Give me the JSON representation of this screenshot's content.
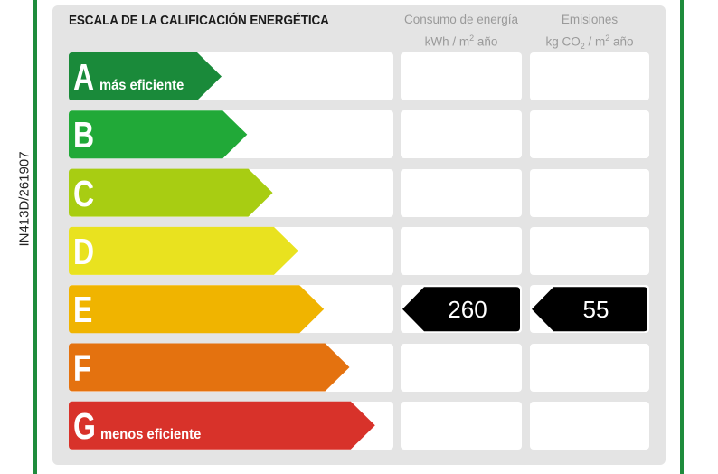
{
  "side_code": "IN413D/261907",
  "header": {
    "title": "ESCALA DE LA CALIFICACIÓN ENERGÉTICA",
    "energy_line1": "Consumo de energía",
    "energy_unit_pre": "kWh / m",
    "energy_unit_sup": "2",
    "energy_unit_post": " año",
    "emissions_line1": "Emisiones",
    "emissions_unit_pre": "kg CO",
    "emissions_unit_sub": "2",
    "emissions_unit_mid": " / m",
    "emissions_unit_sup": "2",
    "emissions_unit_post": " año"
  },
  "ratings": [
    {
      "letter": "A",
      "label": "más eficiente",
      "color": "#1a8a3a"
    },
    {
      "letter": "B",
      "label": "",
      "color": "#21a938"
    },
    {
      "letter": "C",
      "label": "",
      "color": "#a8cd12"
    },
    {
      "letter": "D",
      "label": "",
      "color": "#e9e21f"
    },
    {
      "letter": "E",
      "label": "",
      "color": "#f0b400"
    },
    {
      "letter": "F",
      "label": "",
      "color": "#e4720f"
    },
    {
      "letter": "G",
      "label": "menos eficiente",
      "color": "#d8322a"
    }
  ],
  "result": {
    "rating": "E",
    "energy_value": "260",
    "emissions_value": "55"
  }
}
